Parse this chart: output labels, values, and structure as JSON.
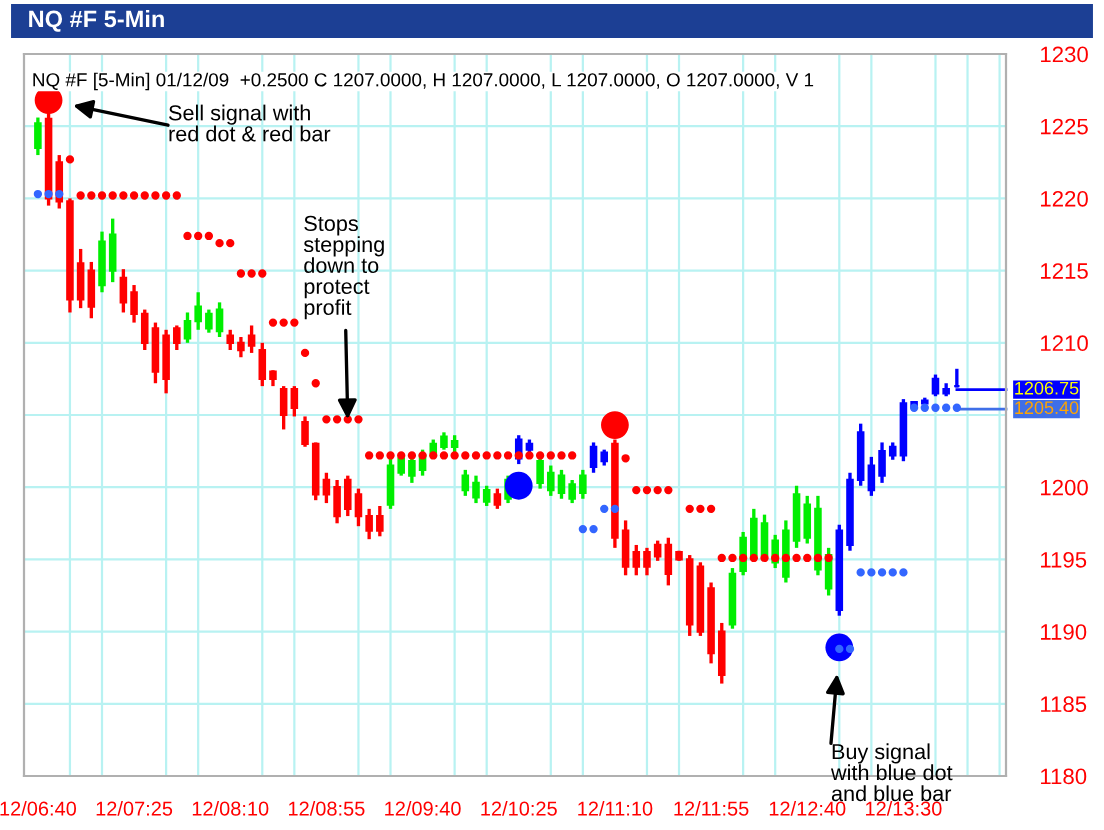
{
  "chart_data": {
    "type": "candlestick",
    "title": "NQ #F 5-Min",
    "subtitle": "NQ #F [5-Min] 01/12/09  +0.2500 C 1207.0000, H 1207.0000, L 1207.0000, O 1207.0000, V 1",
    "categories": [
      "12/06:40",
      null,
      null,
      null,
      null,
      null,
      null,
      null,
      null,
      "12/07:25",
      null,
      null,
      null,
      null,
      null,
      null,
      null,
      null,
      "12/08:10",
      null,
      null,
      null,
      null,
      null,
      null,
      null,
      null,
      "12/08:55",
      null,
      null,
      null,
      null,
      null,
      null,
      null,
      null,
      "12/09:40",
      null,
      null,
      null,
      null,
      null,
      null,
      null,
      null,
      "12/10:25",
      null,
      null,
      null,
      null,
      null,
      null,
      null,
      null,
      "12/11:10",
      null,
      null,
      null,
      null,
      null,
      null,
      null,
      null,
      "12/11:55",
      null,
      null,
      null,
      null,
      null,
      null,
      null,
      null,
      "12/12:40",
      null,
      null,
      null,
      null,
      null,
      null,
      null,
      null,
      "12/13:30",
      null,
      null,
      null,
      null,
      null
    ],
    "ohlc": [
      [
        1223.5,
        1225.6,
        1223.0,
        1225.2
      ],
      [
        1225.5,
        1226.8,
        1219.5,
        1220.0
      ],
      [
        1222.5,
        1223.0,
        1219.3,
        1219.8
      ],
      [
        1219.8,
        1220.0,
        1212.1,
        1213.0
      ],
      [
        1215.5,
        1216.5,
        1212.4,
        1213.0
      ],
      [
        1215.0,
        1215.6,
        1211.7,
        1212.5
      ],
      [
        1214.0,
        1217.7,
        1213.5,
        1217.0
      ],
      [
        1215.0,
        1218.6,
        1214.2,
        1217.5
      ],
      [
        1214.5,
        1215.1,
        1212.1,
        1212.8
      ],
      [
        1213.5,
        1214.0,
        1211.4,
        1212.0
      ],
      [
        1212.0,
        1212.3,
        1209.5,
        1210.0
      ],
      [
        1211.0,
        1211.4,
        1207.2,
        1208.0
      ],
      [
        1210.5,
        1210.9,
        1206.5,
        1207.5
      ],
      [
        1211.0,
        1211.2,
        1209.5,
        1210.0
      ],
      [
        1210.3,
        1212.1,
        1210.0,
        1211.5
      ],
      [
        1211.5,
        1213.5,
        1210.9,
        1212.5
      ],
      [
        1211.0,
        1212.3,
        1210.7,
        1212.0
      ],
      [
        1210.8,
        1212.8,
        1210.4,
        1212.3
      ],
      [
        1210.5,
        1210.9,
        1209.5,
        1210.0
      ],
      [
        1210.0,
        1210.4,
        1209.0,
        1209.5
      ],
      [
        1210.5,
        1211.2,
        1209.3,
        1209.8
      ],
      [
        1209.5,
        1210.0,
        1207.0,
        1207.5
      ],
      [
        1208.0,
        1208.1,
        1207.0,
        1207.5
      ],
      [
        1206.8,
        1207.0,
        1204.0,
        1205.0
      ],
      [
        1206.8,
        1207.0,
        1204.9,
        1205.5
      ],
      [
        1204.5,
        1204.9,
        1202.8,
        1203.0
      ],
      [
        1203.0,
        1203.1,
        1199.1,
        1199.5
      ],
      [
        1200.5,
        1201.0,
        1198.9,
        1199.5
      ],
      [
        1200.0,
        1200.5,
        1197.5,
        1198.0
      ],
      [
        1200.5,
        1200.8,
        1198.0,
        1198.5
      ],
      [
        1199.5,
        1199.9,
        1197.3,
        1198.0
      ],
      [
        1198.0,
        1198.5,
        1196.4,
        1197.0
      ],
      [
        1198.0,
        1198.7,
        1196.6,
        1197.0
      ],
      [
        1198.8,
        1202.2,
        1198.5,
        1201.5
      ],
      [
        1201.0,
        1202.4,
        1200.8,
        1202.0
      ],
      [
        1200.8,
        1202.2,
        1200.3,
        1201.8
      ],
      [
        1201.2,
        1202.6,
        1200.8,
        1202.2
      ],
      [
        1202.4,
        1203.3,
        1202.2,
        1203.0
      ],
      [
        1202.8,
        1203.8,
        1202.6,
        1203.5
      ],
      [
        1202.8,
        1203.6,
        1202.4,
        1203.2
      ],
      [
        1199.8,
        1201.2,
        1199.4,
        1200.8
      ],
      [
        1199.3,
        1200.8,
        1198.9,
        1200.3
      ],
      [
        1199.0,
        1200.1,
        1198.7,
        1199.8
      ],
      [
        1199.5,
        1199.9,
        1198.5,
        1198.8
      ],
      [
        1199.2,
        1200.8,
        1198.9,
        1200.5
      ],
      [
        1202.0,
        1203.6,
        1201.6,
        1203.3
      ],
      [
        1202.6,
        1203.3,
        1202.4,
        1203.0
      ],
      [
        1200.3,
        1202.2,
        1199.9,
        1201.8
      ],
      [
        1199.8,
        1201.5,
        1199.4,
        1201.0
      ],
      [
        1199.6,
        1201.2,
        1199.2,
        1200.8
      ],
      [
        1199.2,
        1200.5,
        1198.9,
        1200.2
      ],
      [
        1199.6,
        1201.2,
        1199.2,
        1200.8
      ],
      [
        1201.4,
        1203.1,
        1201.0,
        1202.8
      ],
      [
        1201.8,
        1202.6,
        1201.5,
        1202.4
      ],
      [
        1203.0,
        1203.3,
        1195.8,
        1196.5
      ],
      [
        1197.0,
        1197.7,
        1193.9,
        1194.5
      ],
      [
        1195.5,
        1196.0,
        1193.9,
        1194.5
      ],
      [
        1195.5,
        1195.8,
        1193.9,
        1194.5
      ],
      [
        1196.0,
        1196.3,
        1194.9,
        1195.2
      ],
      [
        1196.0,
        1196.5,
        1193.2,
        1194.0
      ],
      [
        1195.5,
        1195.6,
        1194.9,
        1195.0
      ],
      [
        1195.0,
        1195.3,
        1189.7,
        1190.5
      ],
      [
        1194.5,
        1194.8,
        1189.7,
        1190.0
      ],
      [
        1193.0,
        1193.4,
        1187.8,
        1188.5
      ],
      [
        1190.0,
        1190.6,
        1186.4,
        1187.0
      ],
      [
        1190.5,
        1194.4,
        1190.2,
        1194.0
      ],
      [
        1194.2,
        1196.9,
        1193.9,
        1196.5
      ],
      [
        1195.3,
        1198.5,
        1194.9,
        1197.8
      ],
      [
        1195.3,
        1198.1,
        1194.9,
        1197.5
      ],
      [
        1194.8,
        1196.7,
        1194.4,
        1196.3
      ],
      [
        1193.8,
        1197.7,
        1193.4,
        1197.0
      ],
      [
        1196.3,
        1200.1,
        1195.8,
        1199.5
      ],
      [
        1196.5,
        1199.4,
        1196.1,
        1198.8
      ],
      [
        1194.3,
        1199.4,
        1193.9,
        1198.5
      ],
      [
        1193.0,
        1195.8,
        1192.5,
        1195.3
      ],
      [
        1191.5,
        1197.4,
        1191.1,
        1197.0
      ],
      [
        1196.0,
        1201.0,
        1195.6,
        1200.5
      ],
      [
        1200.5,
        1204.4,
        1200.1,
        1203.8
      ],
      [
        1199.8,
        1202.1,
        1199.4,
        1201.5
      ],
      [
        1200.8,
        1203.1,
        1200.3,
        1202.5
      ],
      [
        1202.2,
        1203.1,
        1201.9,
        1202.8
      ],
      [
        1202.2,
        1206.1,
        1201.8,
        1205.8
      ],
      [
        1205.6,
        1205.9,
        1205.6,
        1205.9
      ],
      [
        1205.8,
        1206.2,
        1205.7,
        1206.0
      ],
      [
        1206.5,
        1207.8,
        1206.3,
        1207.5
      ],
      [
        1206.5,
        1207.2,
        1206.3,
        1206.8
      ],
      [
        1207.0,
        1208.2,
        1206.9,
        1207.0
      ]
    ],
    "colors": [
      "#00ee00",
      "#ff0000",
      "#ff0000",
      "#ff0000",
      "#ff0000",
      "#ff0000",
      "#00ee00",
      "#00ee00",
      "#ff0000",
      "#ff0000",
      "#ff0000",
      "#ff0000",
      "#ff0000",
      "#ff0000",
      "#00ee00",
      "#00ee00",
      "#00ee00",
      "#00ee00",
      "#ff0000",
      "#ff0000",
      "#ff0000",
      "#ff0000",
      "#ff0000",
      "#ff0000",
      "#ff0000",
      "#ff0000",
      "#ff0000",
      "#ff0000",
      "#ff0000",
      "#ff0000",
      "#ff0000",
      "#ff0000",
      "#ff0000",
      "#00ee00",
      "#00ee00",
      "#00ee00",
      "#00ee00",
      "#00ee00",
      "#00ee00",
      "#00ee00",
      "#00ee00",
      "#00ee00",
      "#00ee00",
      "#ff0000",
      "#00ee00",
      "#0000ff",
      "#0000ff",
      "#00ee00",
      "#00ee00",
      "#00ee00",
      "#00ee00",
      "#00ee00",
      "#0000ff",
      "#0000ff",
      "#ff0000",
      "#ff0000",
      "#ff0000",
      "#ff0000",
      "#ff0000",
      "#ff0000",
      "#ff0000",
      "#ff0000",
      "#ff0000",
      "#ff0000",
      "#ff0000",
      "#00ee00",
      "#00ee00",
      "#00ee00",
      "#00ee00",
      "#00ee00",
      "#00ee00",
      "#00ee00",
      "#00ee00",
      "#00ee00",
      "#00ee00",
      "#0000ff",
      "#0000ff",
      "#0000ff",
      "#0000ff",
      "#0000ff",
      "#0000ff",
      "#0000ff",
      "#0000ff",
      "#0000ff",
      "#0000ff",
      "#0000ff",
      "#0000ff"
    ],
    "series": [
      {
        "type": "scatter",
        "color": "#ff0000",
        "values": [
          null,
          null,
          null,
          1222.7,
          1220.2,
          1220.2,
          1220.2,
          1220.2,
          1220.2,
          1220.2,
          1220.2,
          1220.2,
          1220.2,
          1220.2,
          1217.4,
          1217.4,
          1217.4,
          1216.9,
          1216.9,
          1214.8,
          1214.8,
          1214.8,
          1211.4,
          1211.4,
          1211.4,
          1209.3,
          1207.2,
          1204.7,
          1204.7,
          1204.7,
          1204.7,
          1202.2,
          1202.2,
          1202.2,
          1202.2,
          1202.2,
          1202.2,
          1202.2,
          1202.2,
          1202.2,
          1202.2,
          1202.2,
          1202.2,
          1202.2,
          1202.2,
          1202.2,
          1202.2,
          1202.2,
          1202.2,
          1202.2,
          1202.2,
          null,
          null,
          null,
          null,
          1202.0,
          1199.8,
          1199.8,
          1199.8,
          1199.8,
          null,
          1198.5,
          1198.5,
          1198.5,
          1195.1,
          1195.1,
          1195.1,
          1195.1,
          1195.1,
          1195.1,
          1195.1,
          1195.1,
          1195.1,
          1195.1,
          1195.1,
          null,
          null,
          null,
          null,
          null,
          null,
          null,
          null,
          null,
          null,
          null,
          null
        ]
      },
      {
        "type": "scatter",
        "color": "#3366ff",
        "values": [
          1220.3,
          1220.3,
          1220.3,
          null,
          null,
          null,
          null,
          null,
          null,
          null,
          null,
          null,
          null,
          null,
          null,
          null,
          null,
          null,
          null,
          null,
          null,
          null,
          null,
          null,
          null,
          null,
          null,
          null,
          null,
          null,
          null,
          null,
          null,
          null,
          null,
          null,
          null,
          null,
          null,
          null,
          null,
          null,
          null,
          null,
          null,
          null,
          null,
          null,
          null,
          null,
          null,
          1197.1,
          1197.1,
          1198.5,
          1198.5,
          null,
          null,
          null,
          null,
          null,
          null,
          null,
          null,
          null,
          null,
          null,
          null,
          null,
          null,
          null,
          null,
          null,
          null,
          null,
          null,
          1188.8,
          1188.8,
          1194.1,
          1194.1,
          1194.1,
          1194.1,
          1194.1,
          1205.5,
          1205.5,
          1205.5,
          1205.5,
          1205.5
        ]
      },
      {
        "type": "bubble",
        "color": "#ff0000",
        "values": [
          null,
          1226.8,
          null,
          null,
          null,
          null,
          null,
          null,
          null,
          null,
          null,
          null,
          null,
          null,
          null,
          null,
          null,
          null,
          null,
          null,
          null,
          null,
          null,
          null,
          null,
          null,
          null,
          null,
          null,
          null,
          null,
          null,
          null,
          null,
          null,
          null,
          null,
          null,
          null,
          null,
          null,
          null,
          null,
          null,
          null,
          null,
          null,
          null,
          null,
          null,
          null,
          null,
          null,
          null,
          1204.3,
          null,
          null,
          null,
          null,
          null,
          null,
          null,
          null,
          null,
          null,
          null,
          null,
          null,
          null,
          null,
          null,
          null,
          null,
          null,
          null,
          null,
          null,
          null,
          null,
          null,
          null,
          null,
          null,
          null,
          null,
          null,
          null
        ],
        "sizes": [
          null,
          1,
          null,
          null,
          null,
          null,
          null,
          null,
          null,
          null,
          null,
          null,
          null,
          null,
          null,
          null,
          null,
          null,
          null,
          null,
          null,
          null,
          null,
          null,
          null,
          null,
          null,
          null,
          null,
          null,
          null,
          null,
          null,
          null,
          null,
          null,
          null,
          null,
          null,
          null,
          null,
          null,
          null,
          null,
          null,
          null,
          null,
          null,
          null,
          null,
          null,
          null,
          null,
          null,
          1,
          null,
          null,
          null,
          null,
          null,
          null,
          null,
          null,
          null,
          null,
          null,
          null,
          null,
          null,
          null,
          null,
          null,
          null,
          null,
          null,
          null,
          null,
          null,
          null,
          null,
          null,
          null,
          null,
          null,
          null,
          null,
          null
        ]
      },
      {
        "type": "bubble",
        "color": "#0000ff",
        "values": [
          null,
          null,
          null,
          null,
          null,
          null,
          null,
          null,
          null,
          null,
          null,
          null,
          null,
          null,
          null,
          null,
          null,
          null,
          null,
          null,
          null,
          null,
          null,
          null,
          null,
          null,
          null,
          null,
          null,
          null,
          null,
          null,
          null,
          null,
          null,
          null,
          null,
          null,
          null,
          null,
          null,
          null,
          null,
          null,
          null,
          1200.1,
          null,
          null,
          null,
          null,
          null,
          null,
          null,
          null,
          null,
          null,
          null,
          null,
          null,
          null,
          null,
          null,
          null,
          null,
          null,
          null,
          null,
          null,
          null,
          null,
          null,
          null,
          null,
          null,
          null,
          1188.9,
          null,
          null,
          null,
          null,
          null,
          null,
          null,
          null,
          null,
          null,
          null
        ],
        "sizes": [
          null,
          null,
          null,
          null,
          null,
          null,
          null,
          null,
          null,
          null,
          null,
          null,
          null,
          null,
          null,
          null,
          null,
          null,
          null,
          null,
          null,
          null,
          null,
          null,
          null,
          null,
          null,
          null,
          null,
          null,
          null,
          null,
          null,
          null,
          null,
          null,
          null,
          null,
          null,
          null,
          null,
          null,
          null,
          null,
          null,
          1,
          null,
          null,
          null,
          null,
          null,
          null,
          null,
          null,
          null,
          null,
          null,
          null,
          null,
          null,
          null,
          null,
          null,
          null,
          null,
          null,
          null,
          null,
          null,
          null,
          null,
          null,
          null,
          null,
          null,
          1,
          null,
          null,
          null,
          null,
          null,
          null,
          null,
          null,
          null,
          null,
          null
        ]
      }
    ],
    "ylim": [
      1180,
      1230
    ],
    "yticks": [
      1180,
      1185,
      1190,
      1195,
      1200,
      {
        "value": 1205,
        "label": null
      },
      1210,
      1215,
      1220,
      1225,
      1230
    ],
    "grid": true,
    "ref_lines": [
      {
        "axis": "y",
        "value": 1206.75,
        "label": "1206.75",
        "color": "#0000ff"
      },
      {
        "axis": "y",
        "value": 1205.4,
        "label": "1205.40",
        "color": "#3f6fe8"
      }
    ],
    "annotations": [
      "Sell signal with\nred dot & red bar",
      {
        "text": "Stops\nstepping\ndown to\nprotect\nprofit",
        "y": 1204.7
      },
      "Buy signal\nwith blue dot\nand blue bar"
    ]
  }
}
